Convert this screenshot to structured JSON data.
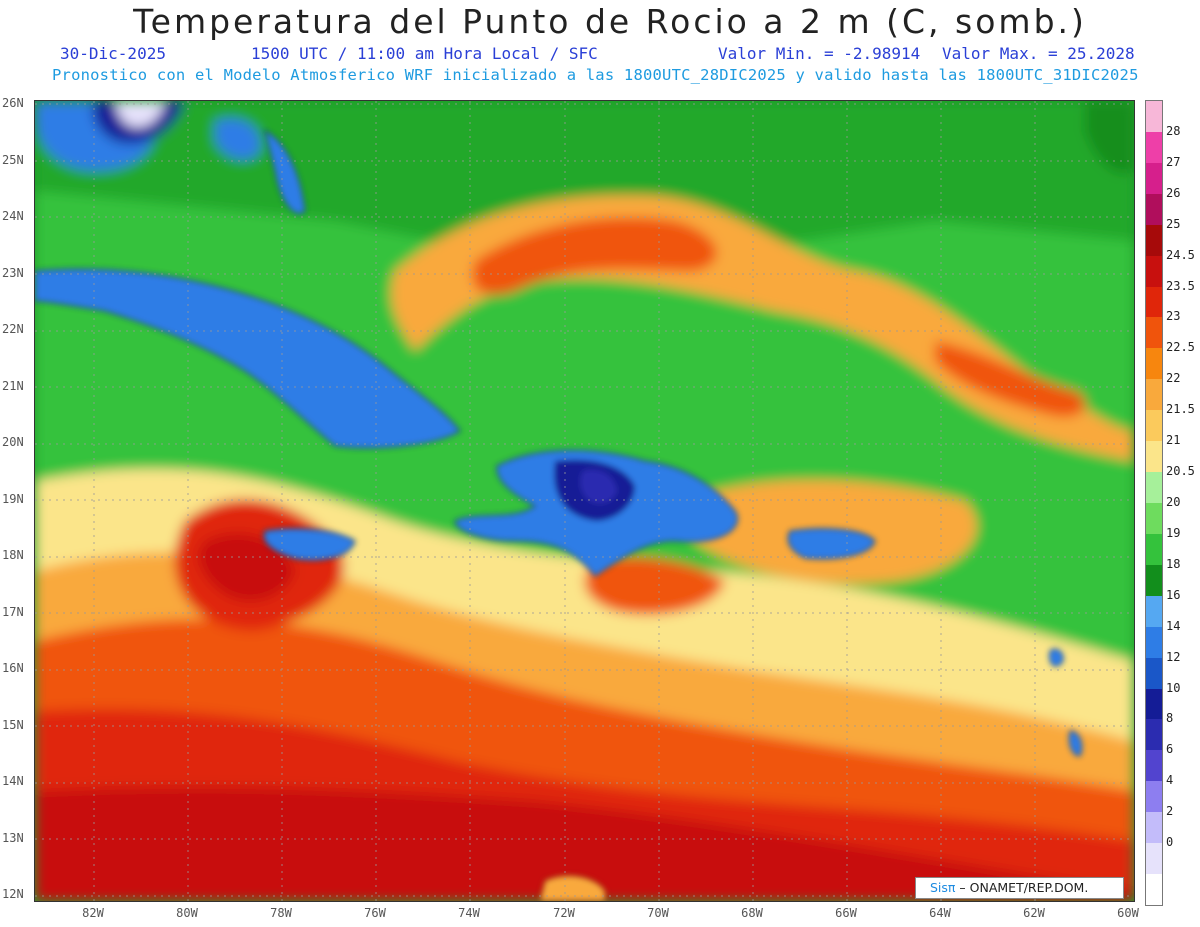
{
  "header": {
    "title": "Temperatura del Punto de Rocio a 2 m (C, somb.)",
    "date": "30-Dic-2025",
    "time": "1500 UTC / 11:00 am Hora Local / SFC",
    "min_label": "Valor Min. = -2.98914",
    "max_label": "Valor Max. = 25.2028",
    "model_line": "Pronostico con el Modelo Atmosferico WRF inicializado a las 1800UTC_28DIC2025 y valido hasta las  1800UTC_31DIC2025"
  },
  "map": {
    "lat_labels": [
      "26N",
      "25N",
      "24N",
      "23N",
      "22N",
      "21N",
      "20N",
      "19N",
      "18N",
      "17N",
      "16N",
      "15N",
      "14N",
      "13N",
      "12N"
    ],
    "lon_labels": [
      "82W",
      "80W",
      "78W",
      "76W",
      "74W",
      "72W",
      "70W",
      "68W",
      "66W",
      "64W",
      "62W",
      "60W"
    ],
    "lat_range": [
      12,
      26
    ],
    "lon_range": [
      -83.2,
      -60
    ],
    "grid": "dotted",
    "credit_prefix": "Sis",
    "credit_pi": "π",
    "credit_rest": " – ONAMET/REP.DOM."
  },
  "colorbar": {
    "labels": [
      "28",
      "27",
      "26",
      "25",
      "24.5",
      "23.5",
      "23",
      "22.5",
      "22",
      "21.5",
      "21",
      "20.5",
      "20",
      "19",
      "18",
      "16",
      "14",
      "12",
      "10",
      "8",
      "6",
      "4",
      "2",
      "0"
    ],
    "colors": [
      "#f7b7d8",
      "#ee3fa8",
      "#d61f8c",
      "#b00e5c",
      "#a60a0a",
      "#c8100e",
      "#e0260a",
      "#f0540c",
      "#f7860e",
      "#f9a93c",
      "#fbca5c",
      "#fbe58a",
      "#a6f09a",
      "#6edc5e",
      "#34c23c",
      "#128e1c",
      "#55a8f2",
      "#2e7de6",
      "#1a57c8",
      "#141c96",
      "#2b2cb0",
      "#5244cf",
      "#8d7ef0",
      "#c3bcfa",
      "#e6e2fb",
      "#ffffff"
    ]
  }
}
